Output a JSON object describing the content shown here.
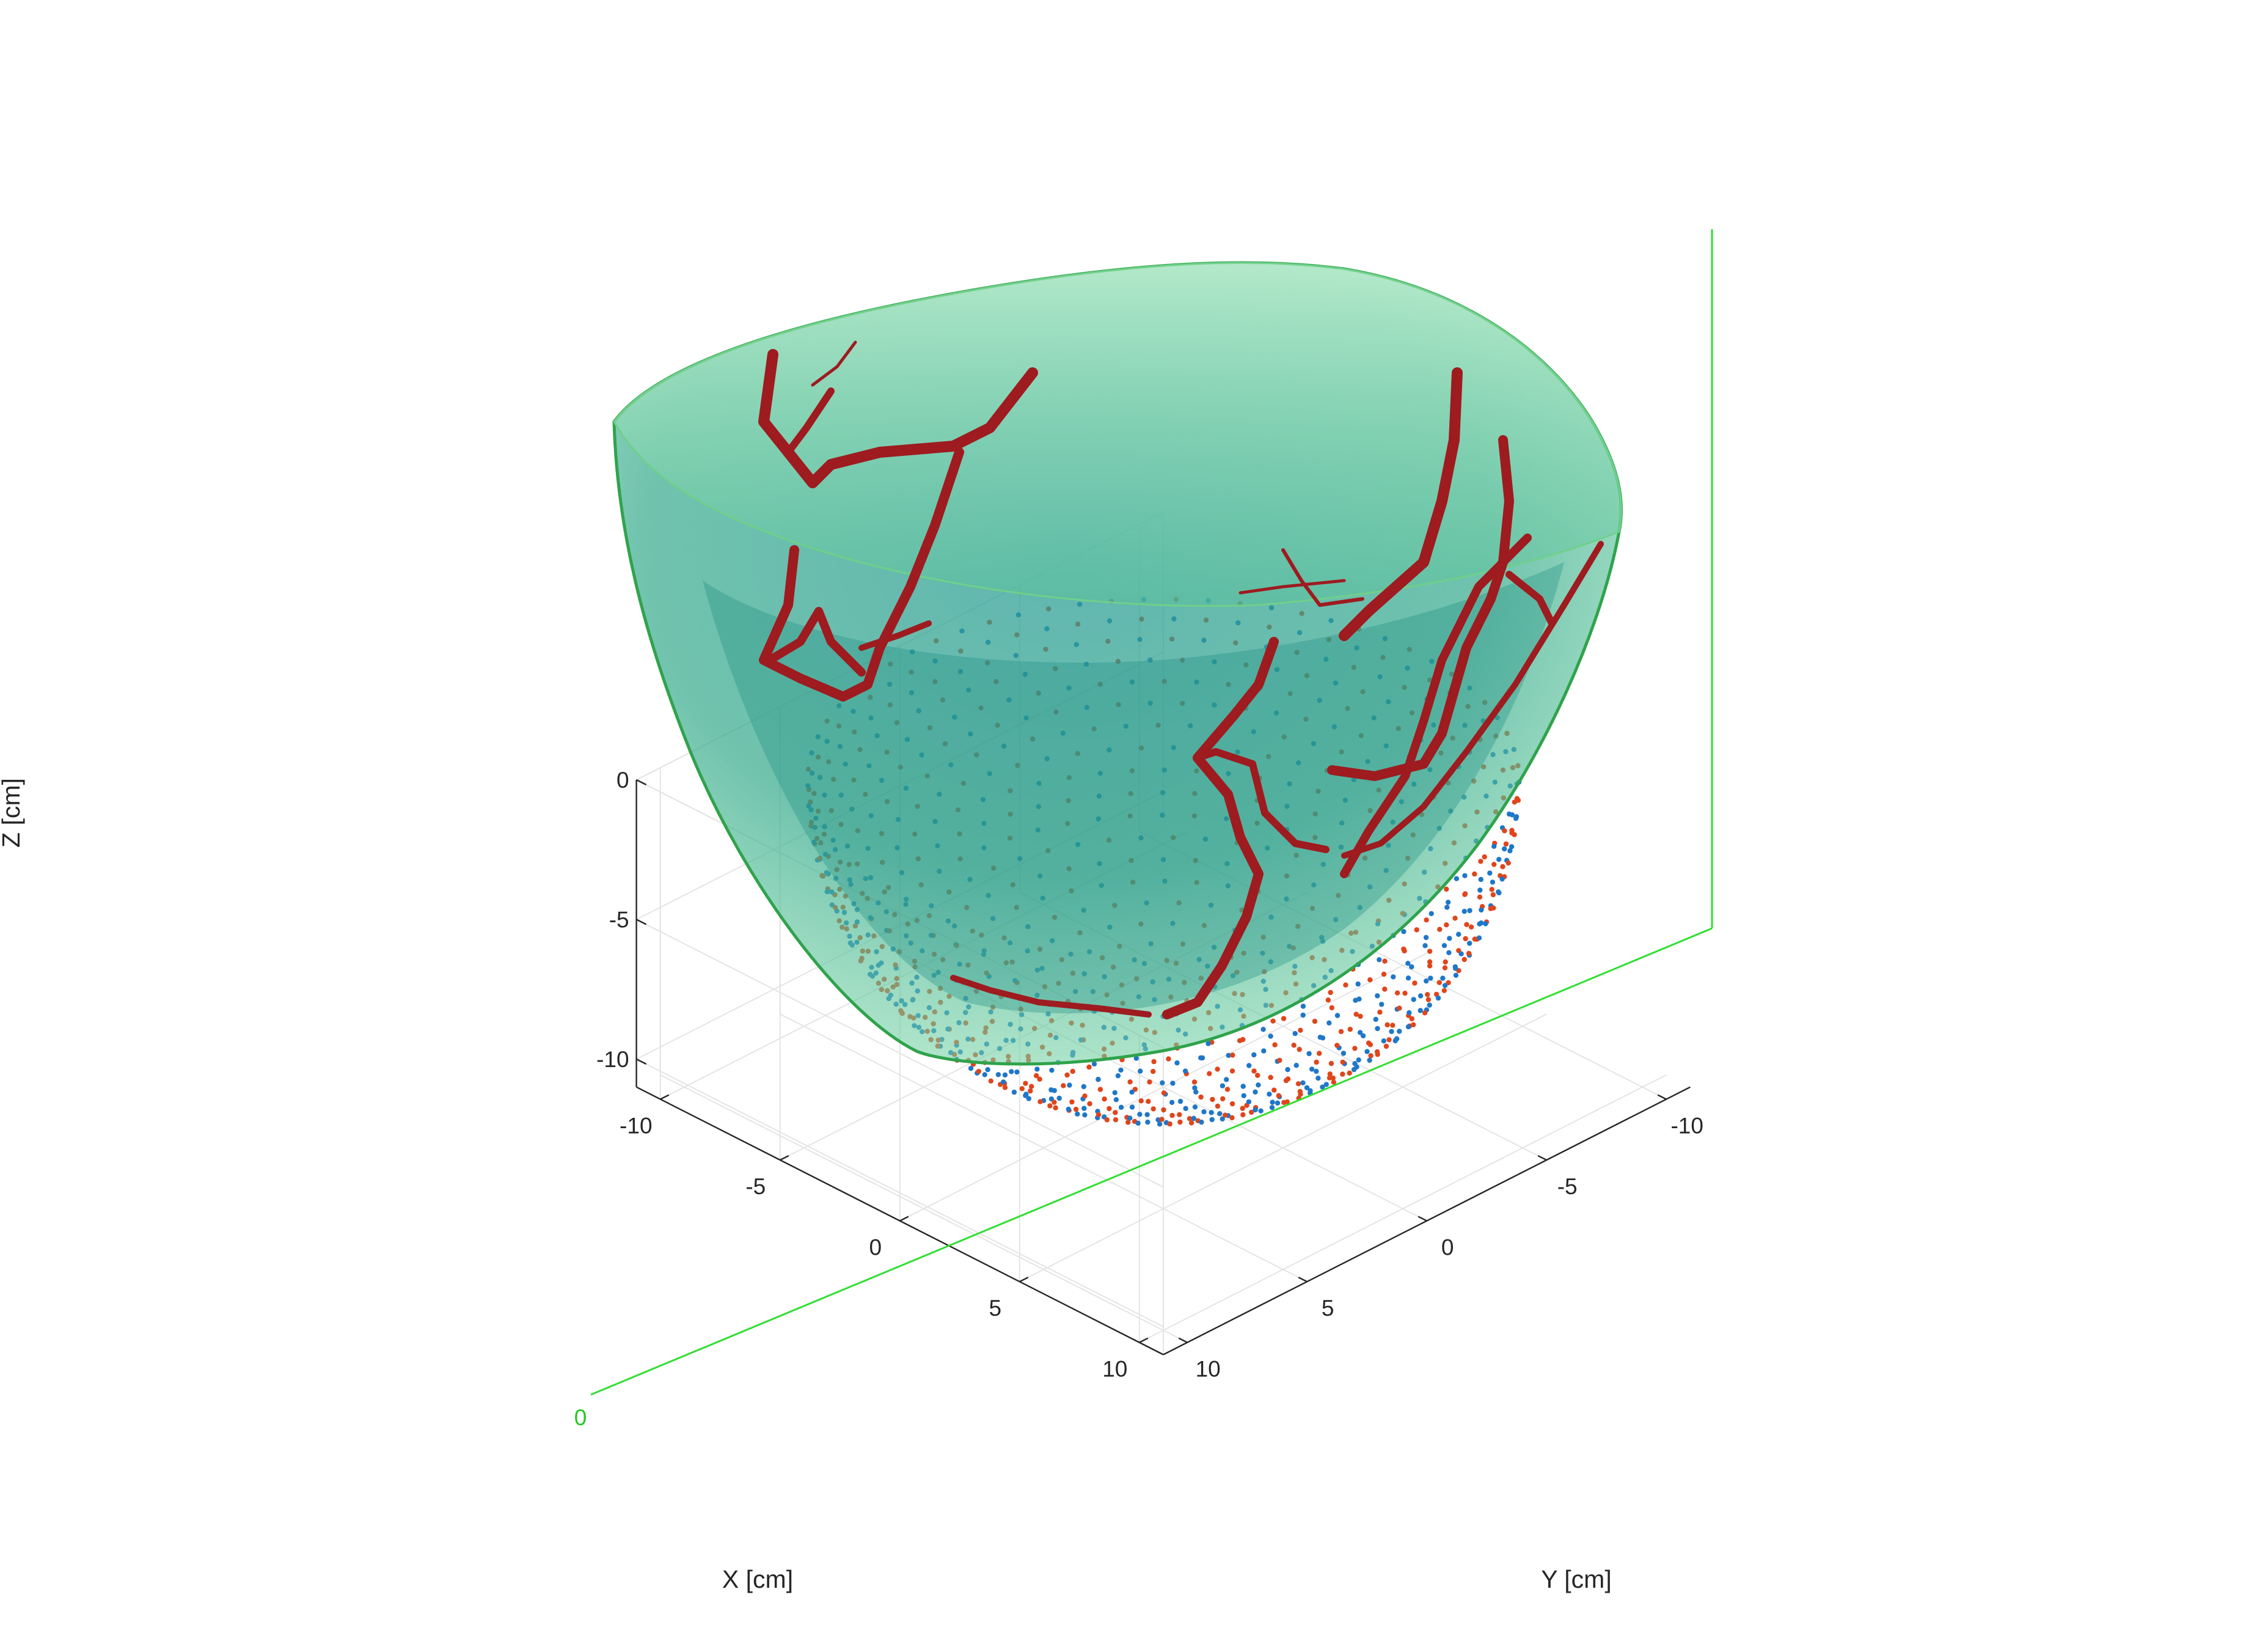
{
  "chart_data": {
    "type": "scatter",
    "view": "3d-isometric",
    "axes": {
      "x": {
        "label": "X [cm]",
        "ticks": [
          -10,
          -5,
          0,
          5,
          10
        ],
        "tick_labels": [
          "-10",
          "-5",
          "0",
          "5",
          "10"
        ],
        "range": [
          -11,
          11
        ]
      },
      "y": {
        "label": "Y [cm]",
        "ticks": [
          -10,
          -5,
          0,
          5,
          10
        ],
        "tick_labels": [
          "-10",
          "-5",
          "0",
          "5",
          "10"
        ],
        "range": [
          -11,
          11
        ]
      },
      "z": {
        "label": "Z [cm]",
        "ticks": [
          -10,
          -5,
          0
        ],
        "tick_labels": [
          "-10",
          "-5",
          "0"
        ],
        "range": [
          -11,
          0
        ]
      }
    },
    "grid": true,
    "series": [
      {
        "kind": "points",
        "color": "#1f77c8",
        "description": "hemispherical shell of sensor points (set 1)"
      },
      {
        "kind": "points",
        "color": "#e0451b",
        "description": "hemispherical shell of sensor points (set 2)"
      },
      {
        "kind": "surface",
        "color": "#3fbf9a",
        "description": "translucent volume"
      },
      {
        "kind": "vessels",
        "color": "#a31a1f",
        "description": "red tubular structures"
      }
    ],
    "reference_lines": {
      "color": "#33dd33",
      "origin_label": "0"
    },
    "shell": {
      "radius_cm": 10.5,
      "rings": 24
    }
  },
  "colors": {
    "blue_points": "#1f77c8",
    "red_points": "#e0451b",
    "volume_fill": "#3fbf9a",
    "volume_edge": "#2fa34c",
    "vessel": "#9e1b1f",
    "green_line": "#33dd33",
    "grid": "#e4e4e4",
    "axis": "#262626"
  }
}
